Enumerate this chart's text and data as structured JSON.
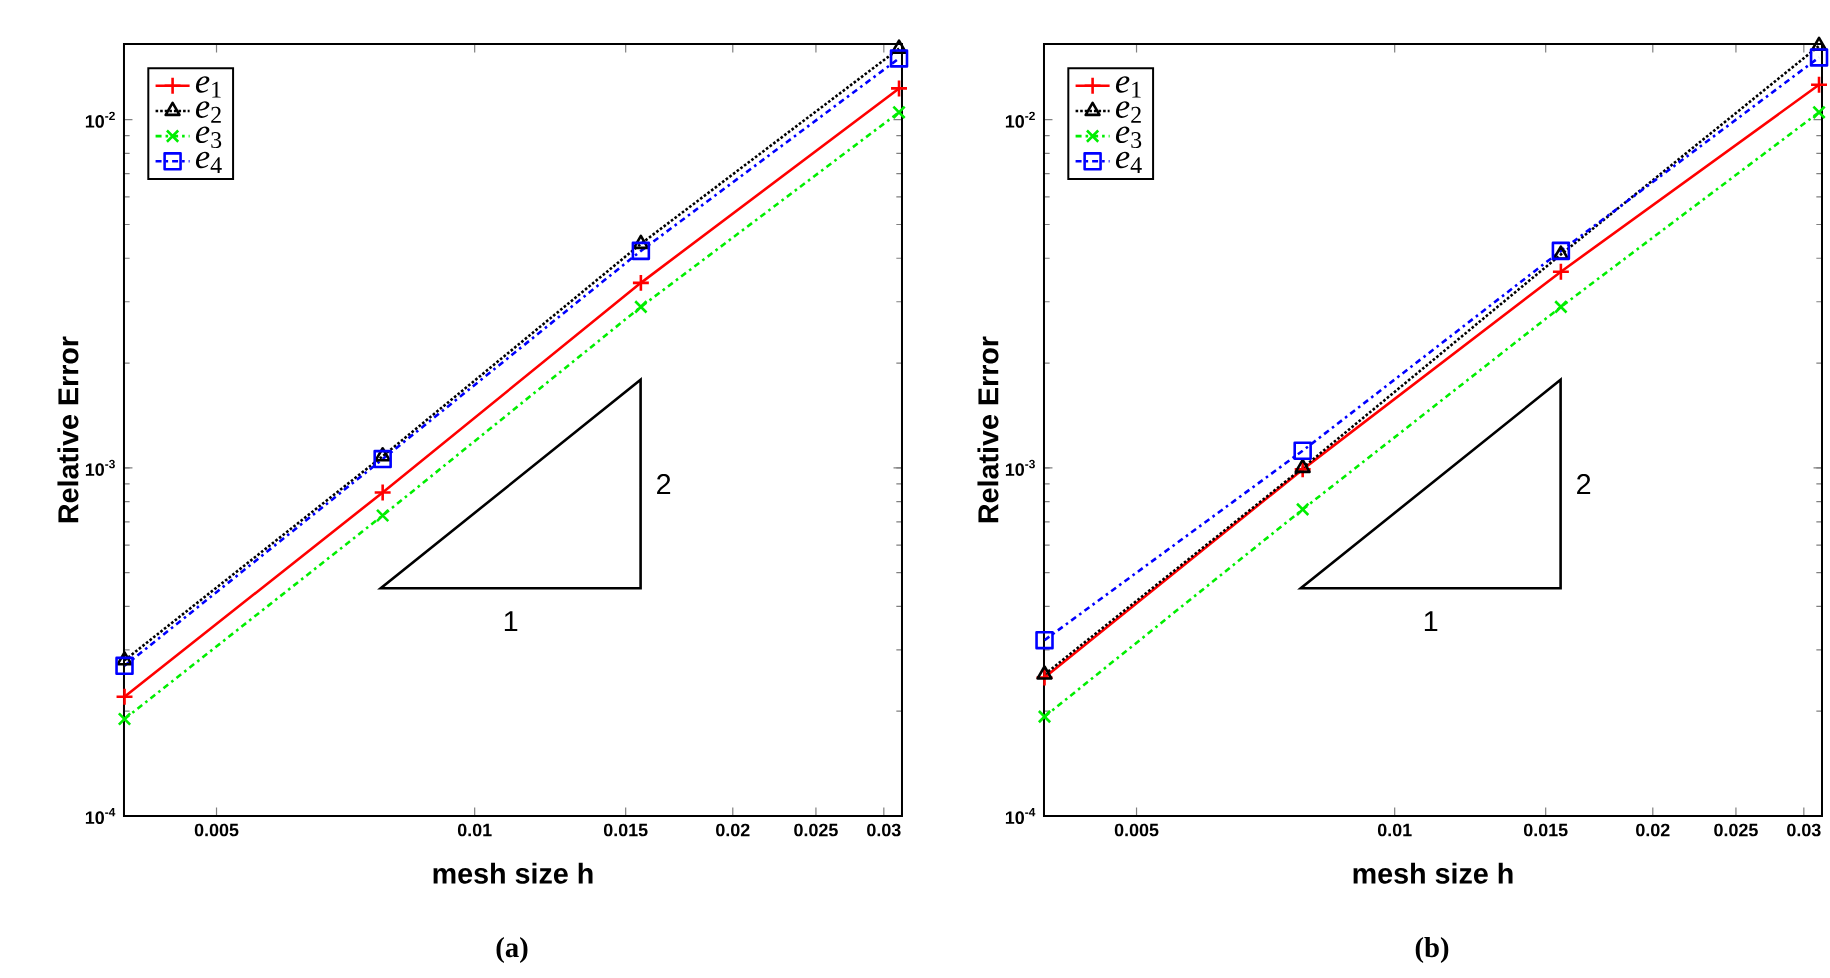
{
  "chart_data": [
    {
      "type": "line",
      "title": "(a)",
      "xlabel": "mesh size h",
      "ylabel": "Relative Error",
      "x": [
        0.00390625,
        0.0078125,
        0.015625,
        0.03125
      ],
      "log": "xy",
      "legend": "top left",
      "xlim": [
        0.0039,
        0.0315
      ],
      "ylim": [
        0.0001,
        0.0165
      ],
      "xticks": [
        0.005,
        0.01,
        0.015,
        0.02,
        0.025,
        0.03
      ],
      "yticks": [
        {
          "value": 0.0001,
          "label": "10$^{-4}$"
        },
        {
          "value": 0.001,
          "label": "10$^{-3}$"
        },
        {
          "value": 0.01,
          "label": "10$^{-2}$"
        }
      ],
      "annotations": [
        "1",
        "2"
      ],
      "series": [
        {
          "name": "*e*$_{1}$",
          "color": "#ff0000",
          "marker": "cross",
          "line_style": "solid",
          "values": [
            0.00022,
            0.00085,
            0.0034,
            0.0123
          ]
        },
        {
          "name": "*e*$_{2}$",
          "color": "#000000",
          "marker": "triangle",
          "line_style": "dotted",
          "values": [
            0.00028,
            0.00108,
            0.0044,
            0.016
          ]
        },
        {
          "name": "*e*$_{3}$",
          "color": "#00ee00",
          "marker": "cross",
          "line_style": "dashed",
          "values": [
            0.00019,
            0.00073,
            0.0029,
            0.0105
          ]
        },
        {
          "name": "*e*$_{4}$",
          "color": "#0000ff",
          "marker": "square",
          "line_style": "dashed",
          "values": [
            0.00027,
            0.00106,
            0.0042,
            0.015
          ]
        }
      ]
    },
    {
      "type": "line",
      "title": "(b)",
      "xlabel": "mesh size h",
      "ylabel": "Relative Error",
      "x": [
        0.00390625,
        0.0078125,
        0.015625,
        0.03125
      ],
      "log": "xy",
      "legend": "top left",
      "xlim": [
        0.0039,
        0.0315
      ],
      "ylim": [
        0.0001,
        0.0165
      ],
      "xticks": [
        0.005,
        0.01,
        0.015,
        0.02,
        0.025,
        0.03
      ],
      "yticks": [
        {
          "value": 0.0001,
          "label": "10$^{-4}$"
        },
        {
          "value": 0.001,
          "label": "10$^{-3}$"
        },
        {
          "value": 0.01,
          "label": "10$^{-2}$"
        }
      ],
      "annotations": [
        "1",
        "2"
      ],
      "series": [
        {
          "name": "*e*$_{1}$",
          "color": "#ff0000",
          "marker": "cross",
          "line_style": "solid",
          "values": [
            0.00025,
            0.00099,
            0.00366,
            0.0126
          ]
        },
        {
          "name": "*e*$_{2}$",
          "color": "#000000",
          "marker": "triangle",
          "line_style": "dotted",
          "values": [
            0.000255,
            0.001,
            0.0041,
            0.0163
          ]
        },
        {
          "name": "*e*$_{3}$",
          "color": "#00ee00",
          "marker": "cross",
          "line_style": "dashed",
          "values": [
            0.000193,
            0.00076,
            0.0029,
            0.0105
          ]
        },
        {
          "name": "*e*$_{4}$",
          "color": "#0000ff",
          "marker": "square",
          "line_style": "dashed",
          "values": [
            0.00032,
            0.00112,
            0.0042,
            0.0151
          ]
        }
      ]
    }
  ]
}
